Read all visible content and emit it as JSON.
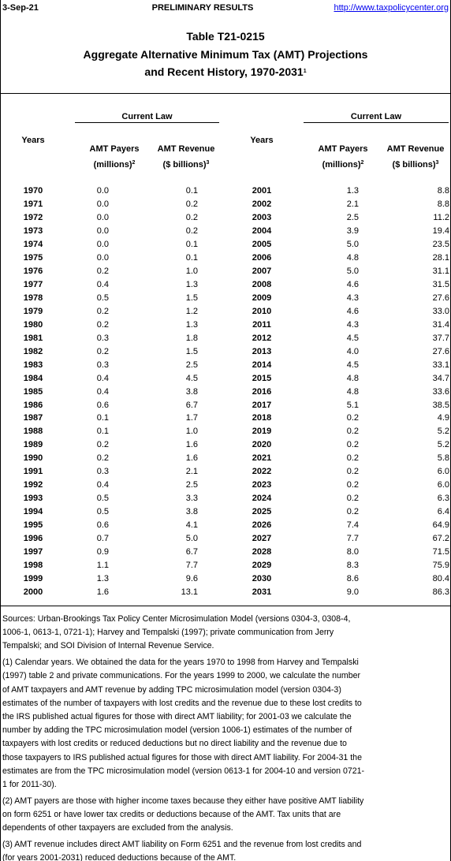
{
  "header": {
    "date": "3-Sep-21",
    "status": "PRELIMINARY RESULTS",
    "url": "http://www.taxpolicycenter.org",
    "title": [
      "Table T21-0215",
      "Aggregate Alternative Minimum Tax (AMT) Projections",
      "and Recent History, 1970-2031"
    ],
    "title_sup": "1"
  },
  "table": {
    "column_groups": [
      {
        "group": "Current Law",
        "years": "Years",
        "payers": "AMT Payers",
        "payers_unit": "(millions)",
        "payers_sup": "2",
        "revenue": "AMT Revenue",
        "revenue_unit": "($ billions)",
        "revenue_sup": "3"
      },
      {
        "group": "Current Law",
        "years": "Years",
        "payers": "AMT Payers",
        "payers_unit": "(millions)",
        "payers_sup": "2",
        "revenue": "AMT Revenue",
        "revenue_unit": "($ billions)",
        "revenue_sup": "3"
      }
    ],
    "rows": [
      [
        "1970",
        "0.0",
        "0.1",
        "2001",
        "1.3",
        "8.8"
      ],
      [
        "1971",
        "0.0",
        "0.2",
        "2002",
        "2.1",
        "8.8"
      ],
      [
        "1972",
        "0.0",
        "0.2",
        "2003",
        "2.5",
        "11.2"
      ],
      [
        "1973",
        "0.0",
        "0.2",
        "2004",
        "3.9",
        "19.4"
      ],
      [
        "1974",
        "0.0",
        "0.1",
        "2005",
        "5.0",
        "23.5"
      ],
      [
        "1975",
        "0.0",
        "0.1",
        "2006",
        "4.8",
        "28.1"
      ],
      [
        "1976",
        "0.2",
        "1.0",
        "2007",
        "5.0",
        "31.1"
      ],
      [
        "1977",
        "0.4",
        "1.3",
        "2008",
        "4.6",
        "31.5"
      ],
      [
        "1978",
        "0.5",
        "1.5",
        "2009",
        "4.3",
        "27.6"
      ],
      [
        "1979",
        "0.2",
        "1.2",
        "2010",
        "4.6",
        "33.0"
      ],
      [
        "1980",
        "0.2",
        "1.3",
        "2011",
        "4.3",
        "31.4"
      ],
      [
        "1981",
        "0.3",
        "1.8",
        "2012",
        "4.5",
        "37.7"
      ],
      [
        "1982",
        "0.2",
        "1.5",
        "2013",
        "4.0",
        "27.6"
      ],
      [
        "1983",
        "0.3",
        "2.5",
        "2014",
        "4.5",
        "33.1"
      ],
      [
        "1984",
        "0.4",
        "4.5",
        "2015",
        "4.8",
        "34.7"
      ],
      [
        "1985",
        "0.4",
        "3.8",
        "2016",
        "4.8",
        "33.6"
      ],
      [
        "1986",
        "0.6",
        "6.7",
        "2017",
        "5.1",
        "38.5"
      ],
      [
        "1987",
        "0.1",
        "1.7",
        "2018",
        "0.2",
        "4.9"
      ],
      [
        "1988",
        "0.1",
        "1.0",
        "2019",
        "0.2",
        "5.2"
      ],
      [
        "1989",
        "0.2",
        "1.6",
        "2020",
        "0.2",
        "5.2"
      ],
      [
        "1990",
        "0.2",
        "1.6",
        "2021",
        "0.2",
        "5.8"
      ],
      [
        "1991",
        "0.3",
        "2.1",
        "2022",
        "0.2",
        "6.0"
      ],
      [
        "1992",
        "0.4",
        "2.5",
        "2023",
        "0.2",
        "6.0"
      ],
      [
        "1993",
        "0.5",
        "3.3",
        "2024",
        "0.2",
        "6.3"
      ],
      [
        "1994",
        "0.5",
        "3.8",
        "2025",
        "0.2",
        "6.4"
      ],
      [
        "1995",
        "0.6",
        "4.1",
        "2026",
        "7.4",
        "64.9"
      ],
      [
        "1996",
        "0.7",
        "5.0",
        "2027",
        "7.7",
        "67.2"
      ],
      [
        "1997",
        "0.9",
        "6.7",
        "2028",
        "8.0",
        "71.5"
      ],
      [
        "1998",
        "1.1",
        "7.7",
        "2029",
        "8.3",
        "75.9"
      ],
      [
        "1999",
        "1.3",
        "9.6",
        "2030",
        "8.6",
        "80.4"
      ],
      [
        "2000",
        "1.6",
        "13.1",
        "2031",
        "9.0",
        "86.3"
      ]
    ]
  },
  "notes": [
    [
      "Sources: Urban-Brookings Tax Policy Center Microsimulation Model (versions 0304-3, 0308-4,",
      "1006-1, 0613-1, 0721-1); Harvey and Tempalski (1997); private communication from Jerry",
      "Tempalski; and SOI Division of Internal Revenue Service."
    ],
    [
      "(1) Calendar years. We obtained the data for the years 1970 to 1998 from Harvey and Tempalski",
      "(1997) table 2 and private communications. For the years 1999 to 2000, we calculate the number",
      "of AMT taxpayers and AMT revenue by adding TPC microsimulation model (version 0304-3)",
      "estimates of the number of taxpayers with lost credits and the revenue due to these lost credits to",
      "the IRS published actual figures for those with direct AMT liability; for 2001-03 we calculate the",
      "number by adding the TPC microsimulation model (version 1006-1) estimates of the number of",
      "taxpayers with lost credits or reduced deductions but no direct liability and the revenue due to",
      "those taxpayers to IRS published actual figures for those with direct AMT liability. For 2004-31 the",
      "estimates are from the TPC microsimulation model (version 0613-1 for 2004-10 and version 0721-",
      "1 for 2011-30)."
    ],
    [
      "(2) AMT payers are those with higher income taxes because they either have positive AMT liability",
      "on form 6251 or have lower tax credits or deductions because of the AMT. Tax units that are",
      "dependents of other taxpayers are excluded from the analysis."
    ],
    [
      "(3) AMT revenue includes direct AMT liability on Form 6251 and the revenue from lost credits and",
      "(for years 2001-2031) reduced deductions because of the AMT."
    ]
  ]
}
